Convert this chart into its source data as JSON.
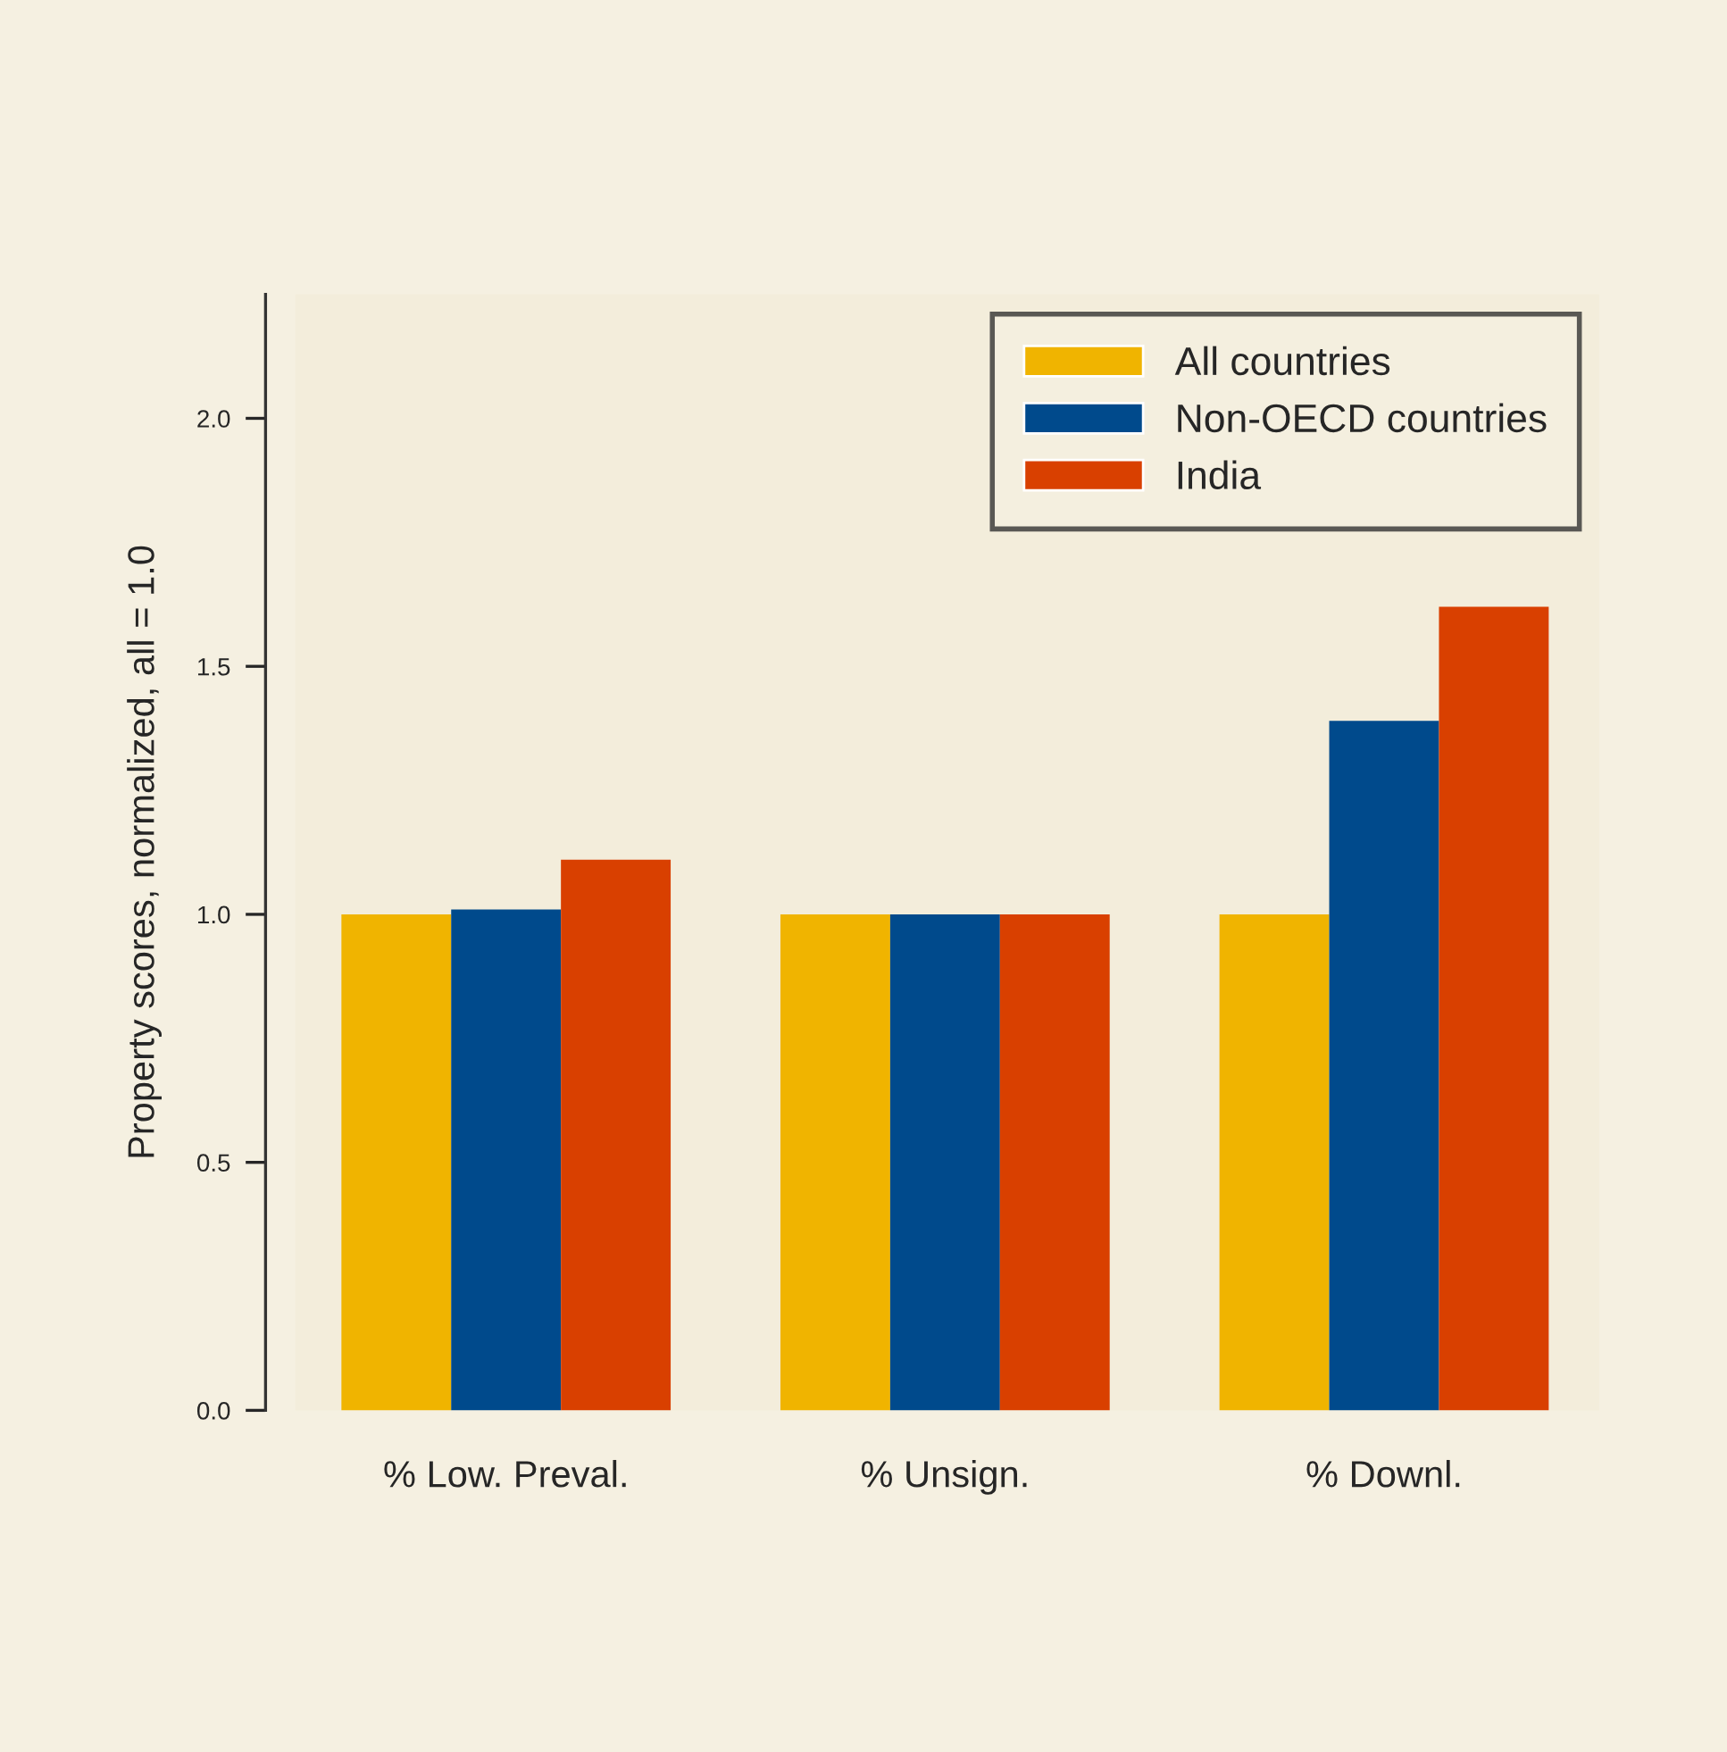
{
  "chart_data": {
    "type": "bar",
    "ylabel": "Property scores, normalized, all = 1.0",
    "categories": [
      "% Low. Preval.",
      "% Unsign.",
      "% Downl."
    ],
    "series": [
      {
        "name": "All countries",
        "color": "#f0b400",
        "values": [
          1.0,
          1.0,
          1.0
        ]
      },
      {
        "name": "Non-OECD countries",
        "color": "#004a8c",
        "values": [
          1.01,
          1.0,
          1.39
        ]
      },
      {
        "name": "India",
        "color": "#d94000",
        "values": [
          1.11,
          1.0,
          1.62
        ]
      }
    ],
    "ylim": [
      0,
      2.25
    ],
    "yticks": [
      {
        "value": 0,
        "label": "0.0"
      },
      {
        "value": 0.5,
        "label": "0.5"
      },
      {
        "value": 1,
        "label": "1.0"
      },
      {
        "value": 1.5,
        "label": "1.5"
      },
      {
        "value": 2,
        "label": "2.0"
      }
    ],
    "grid": false,
    "legend": "top right"
  }
}
